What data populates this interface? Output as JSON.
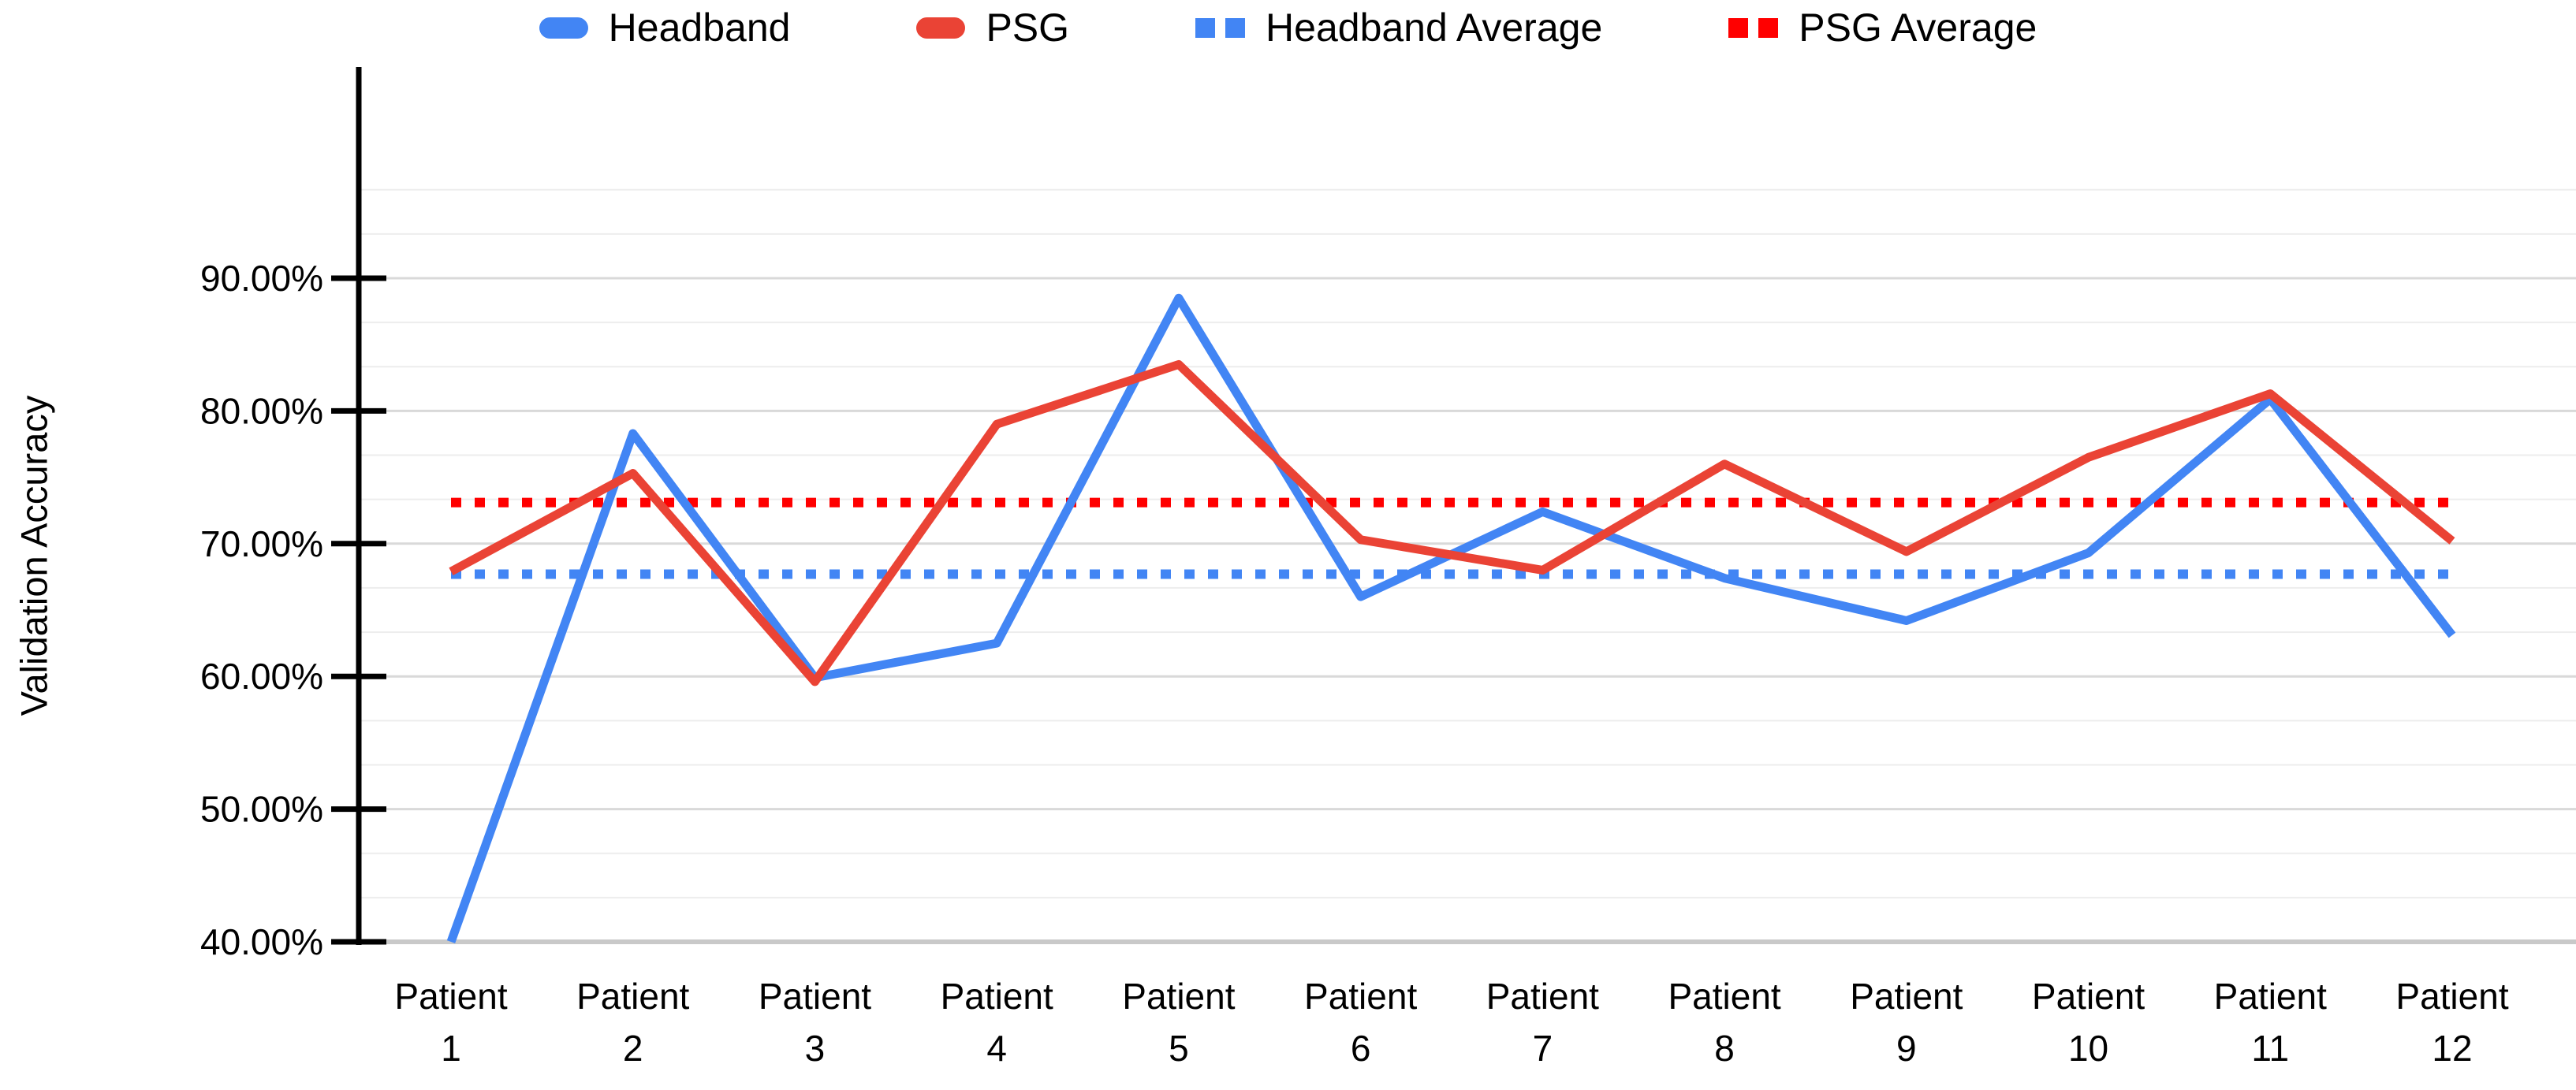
{
  "legend": {
    "items": [
      {
        "label": "Headband",
        "style": "solid",
        "color": "#4285f4"
      },
      {
        "label": "PSG",
        "style": "solid",
        "color": "#ea4335"
      },
      {
        "label": "Headband Average",
        "style": "dotted",
        "color": "#4285f4"
      },
      {
        "label": "PSG Average",
        "style": "dotted",
        "color": "#ff0000"
      }
    ]
  },
  "chart_data": {
    "type": "line",
    "title": "",
    "xlabel": "",
    "ylabel": "Validation Accuracy",
    "unit": "%",
    "categories": [
      "Patient 1",
      "Patient 2",
      "Patient 3",
      "Patient 4",
      "Patient 5",
      "Patient 6",
      "Patient 7",
      "Patient 8",
      "Patient 9",
      "Patient 10",
      "Patient 11",
      "Patient 12"
    ],
    "series": [
      {
        "name": "Headband",
        "style": "solid",
        "color": "#4285f4",
        "values": [
          40.0,
          78.3,
          59.9,
          62.5,
          88.5,
          66.0,
          72.4,
          67.4,
          64.2,
          69.3,
          80.9,
          63.1
        ]
      },
      {
        "name": "PSG",
        "style": "solid",
        "color": "#ea4335",
        "values": [
          67.9,
          75.3,
          59.6,
          79.0,
          83.5,
          70.3,
          68.0,
          76.0,
          69.4,
          76.5,
          81.3,
          70.2
        ]
      },
      {
        "name": "Headband Average",
        "style": "dotted",
        "color": "#4285f4",
        "constant": 67.7
      },
      {
        "name": "PSG Average",
        "style": "dotted",
        "color": "#ff0000",
        "constant": 73.1
      }
    ],
    "ylim": [
      40,
      100
    ],
    "yticks": [
      90,
      80,
      70,
      60,
      50,
      40
    ],
    "ytick_labels": [
      "90.00%",
      "80.00%",
      "70.00%",
      "60.00%",
      "50.00%",
      "40.00%"
    ],
    "minor_gridlines_per_major": 2,
    "grid": {
      "major": true,
      "minor": true
    },
    "legend_position": "top"
  }
}
